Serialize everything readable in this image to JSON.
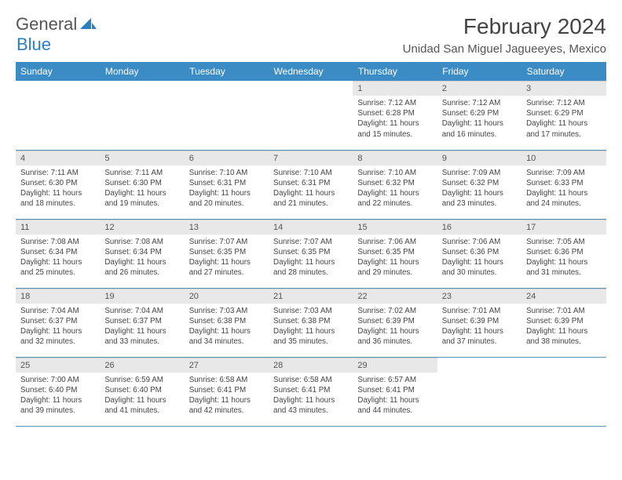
{
  "logo": {
    "word1": "General",
    "word2": "Blue"
  },
  "header": {
    "title": "February 2024",
    "location": "Unidad San Miguel Jagueeyes, Mexico"
  },
  "colors": {
    "header_bg": "#3b8bc4",
    "header_text": "#ffffff",
    "row_border": "#5a91b8",
    "daynum_bg": "#e8e8e8",
    "logo_blue": "#2a7fbf"
  },
  "daysOfWeek": [
    "Sunday",
    "Monday",
    "Tuesday",
    "Wednesday",
    "Thursday",
    "Friday",
    "Saturday"
  ],
  "startOffset": 4,
  "cells": [
    {
      "n": "1",
      "sr": "7:12 AM",
      "ss": "6:28 PM",
      "dl": "11 hours and 15 minutes."
    },
    {
      "n": "2",
      "sr": "7:12 AM",
      "ss": "6:29 PM",
      "dl": "11 hours and 16 minutes."
    },
    {
      "n": "3",
      "sr": "7:12 AM",
      "ss": "6:29 PM",
      "dl": "11 hours and 17 minutes."
    },
    {
      "n": "4",
      "sr": "7:11 AM",
      "ss": "6:30 PM",
      "dl": "11 hours and 18 minutes."
    },
    {
      "n": "5",
      "sr": "7:11 AM",
      "ss": "6:30 PM",
      "dl": "11 hours and 19 minutes."
    },
    {
      "n": "6",
      "sr": "7:10 AM",
      "ss": "6:31 PM",
      "dl": "11 hours and 20 minutes."
    },
    {
      "n": "7",
      "sr": "7:10 AM",
      "ss": "6:31 PM",
      "dl": "11 hours and 21 minutes."
    },
    {
      "n": "8",
      "sr": "7:10 AM",
      "ss": "6:32 PM",
      "dl": "11 hours and 22 minutes."
    },
    {
      "n": "9",
      "sr": "7:09 AM",
      "ss": "6:32 PM",
      "dl": "11 hours and 23 minutes."
    },
    {
      "n": "10",
      "sr": "7:09 AM",
      "ss": "6:33 PM",
      "dl": "11 hours and 24 minutes."
    },
    {
      "n": "11",
      "sr": "7:08 AM",
      "ss": "6:34 PM",
      "dl": "11 hours and 25 minutes."
    },
    {
      "n": "12",
      "sr": "7:08 AM",
      "ss": "6:34 PM",
      "dl": "11 hours and 26 minutes."
    },
    {
      "n": "13",
      "sr": "7:07 AM",
      "ss": "6:35 PM",
      "dl": "11 hours and 27 minutes."
    },
    {
      "n": "14",
      "sr": "7:07 AM",
      "ss": "6:35 PM",
      "dl": "11 hours and 28 minutes."
    },
    {
      "n": "15",
      "sr": "7:06 AM",
      "ss": "6:35 PM",
      "dl": "11 hours and 29 minutes."
    },
    {
      "n": "16",
      "sr": "7:06 AM",
      "ss": "6:36 PM",
      "dl": "11 hours and 30 minutes."
    },
    {
      "n": "17",
      "sr": "7:05 AM",
      "ss": "6:36 PM",
      "dl": "11 hours and 31 minutes."
    },
    {
      "n": "18",
      "sr": "7:04 AM",
      "ss": "6:37 PM",
      "dl": "11 hours and 32 minutes."
    },
    {
      "n": "19",
      "sr": "7:04 AM",
      "ss": "6:37 PM",
      "dl": "11 hours and 33 minutes."
    },
    {
      "n": "20",
      "sr": "7:03 AM",
      "ss": "6:38 PM",
      "dl": "11 hours and 34 minutes."
    },
    {
      "n": "21",
      "sr": "7:03 AM",
      "ss": "6:38 PM",
      "dl": "11 hours and 35 minutes."
    },
    {
      "n": "22",
      "sr": "7:02 AM",
      "ss": "6:39 PM",
      "dl": "11 hours and 36 minutes."
    },
    {
      "n": "23",
      "sr": "7:01 AM",
      "ss": "6:39 PM",
      "dl": "11 hours and 37 minutes."
    },
    {
      "n": "24",
      "sr": "7:01 AM",
      "ss": "6:39 PM",
      "dl": "11 hours and 38 minutes."
    },
    {
      "n": "25",
      "sr": "7:00 AM",
      "ss": "6:40 PM",
      "dl": "11 hours and 39 minutes."
    },
    {
      "n": "26",
      "sr": "6:59 AM",
      "ss": "6:40 PM",
      "dl": "11 hours and 41 minutes."
    },
    {
      "n": "27",
      "sr": "6:58 AM",
      "ss": "6:41 PM",
      "dl": "11 hours and 42 minutes."
    },
    {
      "n": "28",
      "sr": "6:58 AM",
      "ss": "6:41 PM",
      "dl": "11 hours and 43 minutes."
    },
    {
      "n": "29",
      "sr": "6:57 AM",
      "ss": "6:41 PM",
      "dl": "11 hours and 44 minutes."
    }
  ],
  "labels": {
    "sunrise": "Sunrise: ",
    "sunset": "Sunset: ",
    "daylight": "Daylight: "
  }
}
